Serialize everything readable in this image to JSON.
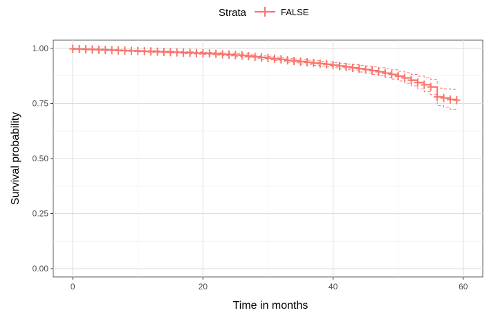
{
  "chart_data": {
    "type": "line",
    "title": "",
    "xlabel": "Time in months",
    "ylabel": "Survival probability",
    "xlim": [
      -3,
      63
    ],
    "ylim": [
      -0.0375,
      1.0375
    ],
    "x_ticks": [
      0,
      20,
      40,
      60
    ],
    "x_tick_labels": [
      "0",
      "20",
      "40",
      "60"
    ],
    "y_ticks": [
      0,
      0.25,
      0.5,
      0.75,
      1
    ],
    "y_tick_labels": [
      "0.00",
      "0.25",
      "0.50",
      "0.75",
      "1.00"
    ],
    "grid": true,
    "legend": {
      "title": "Strata",
      "position": "top",
      "entries": [
        "FALSE"
      ]
    },
    "series": [
      {
        "name": "FALSE",
        "color": "#F8766D",
        "step": true,
        "x": [
          0,
          1,
          2,
          3,
          4,
          5,
          6,
          7,
          8,
          9,
          10,
          11,
          12,
          13,
          14,
          15,
          16,
          17,
          18,
          19,
          20,
          21,
          22,
          23,
          24,
          25,
          26,
          27,
          28,
          29,
          30,
          31,
          32,
          33,
          34,
          35,
          36,
          37,
          38,
          39,
          40,
          41,
          42,
          43,
          44,
          45,
          46,
          47,
          48,
          49,
          50,
          51,
          52,
          53,
          54,
          55,
          56,
          57,
          58,
          59
        ],
        "y": [
          0.998,
          0.997,
          0.996,
          0.995,
          0.994,
          0.993,
          0.992,
          0.991,
          0.99,
          0.989,
          0.988,
          0.987,
          0.986,
          0.985,
          0.984,
          0.983,
          0.982,
          0.981,
          0.98,
          0.979,
          0.978,
          0.977,
          0.975,
          0.973,
          0.972,
          0.97,
          0.968,
          0.965,
          0.962,
          0.959,
          0.956,
          0.953,
          0.95,
          0.946,
          0.943,
          0.94,
          0.937,
          0.934,
          0.931,
          0.928,
          0.924,
          0.92,
          0.916,
          0.912,
          0.908,
          0.904,
          0.899,
          0.894,
          0.888,
          0.882,
          0.874,
          0.866,
          0.856,
          0.845,
          0.835,
          0.825,
          0.78,
          0.775,
          0.768,
          0.765
        ],
        "lower": [
          0.995,
          0.994,
          0.993,
          0.992,
          0.991,
          0.99,
          0.989,
          0.988,
          0.987,
          0.986,
          0.985,
          0.983,
          0.982,
          0.981,
          0.98,
          0.979,
          0.978,
          0.976,
          0.975,
          0.974,
          0.973,
          0.971,
          0.969,
          0.967,
          0.966,
          0.963,
          0.961,
          0.958,
          0.955,
          0.951,
          0.948,
          0.945,
          0.941,
          0.937,
          0.934,
          0.93,
          0.927,
          0.923,
          0.92,
          0.916,
          0.912,
          0.907,
          0.903,
          0.898,
          0.893,
          0.888,
          0.882,
          0.876,
          0.869,
          0.861,
          0.852,
          0.842,
          0.83,
          0.816,
          0.803,
          0.79,
          0.74,
          0.733,
          0.722,
          0.718
        ],
        "upper": [
          1.0,
          1.0,
          0.999,
          0.998,
          0.997,
          0.996,
          0.995,
          0.994,
          0.993,
          0.992,
          0.991,
          0.99,
          0.99,
          0.989,
          0.988,
          0.987,
          0.986,
          0.985,
          0.985,
          0.984,
          0.983,
          0.982,
          0.981,
          0.979,
          0.978,
          0.977,
          0.975,
          0.972,
          0.969,
          0.966,
          0.964,
          0.961,
          0.958,
          0.955,
          0.952,
          0.949,
          0.946,
          0.944,
          0.941,
          0.938,
          0.935,
          0.932,
          0.929,
          0.926,
          0.923,
          0.92,
          0.916,
          0.912,
          0.907,
          0.903,
          0.896,
          0.89,
          0.882,
          0.874,
          0.867,
          0.86,
          0.82,
          0.817,
          0.814,
          0.812
        ]
      }
    ]
  }
}
